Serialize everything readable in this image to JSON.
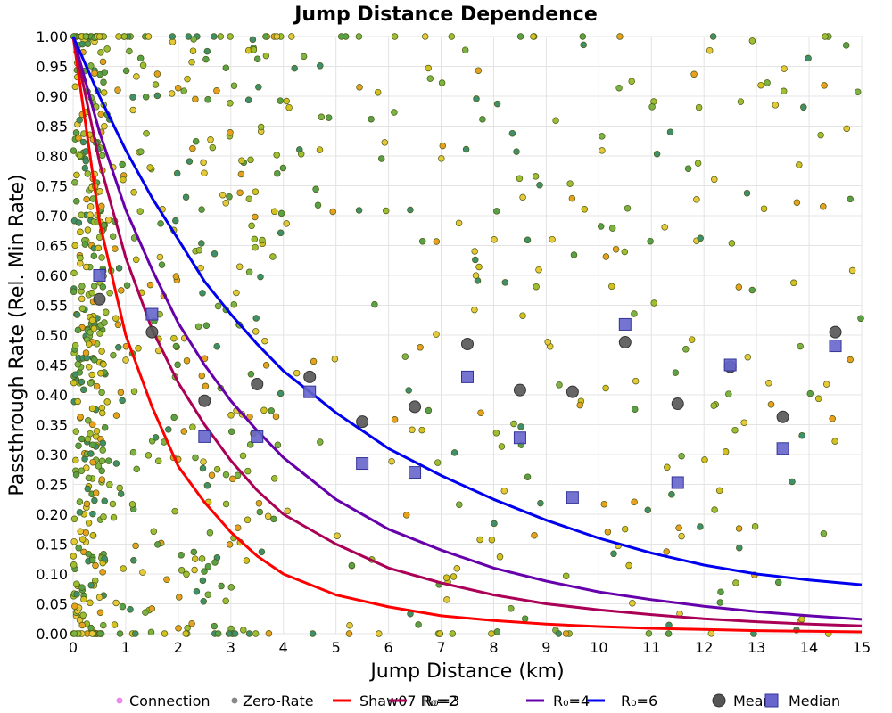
{
  "chart_data": {
    "type": "scatter",
    "title": "Jump Distance Dependence",
    "xlabel": "Jump Distance (km)",
    "ylabel": "Passthrough Rate (Rel. Min Rate)",
    "xlim": [
      0,
      15
    ],
    "ylim": [
      0,
      1
    ],
    "grid": true,
    "x_ticks": [
      "0",
      "1",
      "2",
      "3",
      "4",
      "5",
      "6",
      "7",
      "8",
      "9",
      "10",
      "11",
      "12",
      "13",
      "14",
      "15"
    ],
    "y_ticks": [
      "0.00",
      "0.05",
      "0.10",
      "0.15",
      "0.20",
      "0.25",
      "0.30",
      "0.35",
      "0.40",
      "0.45",
      "0.50",
      "0.55",
      "0.60",
      "0.65",
      "0.70",
      "0.75",
      "0.80",
      "0.85",
      "0.90",
      "0.95",
      "1.00"
    ],
    "legend_position": "bottom",
    "legend": [
      {
        "label": "Connection",
        "marker": "dot",
        "color": "#ee88ee"
      },
      {
        "label": "Zero-Rate",
        "marker": "dot",
        "color": "#888888"
      },
      {
        "label": "Shaw07 R₀=2",
        "marker": "line",
        "color": "#ff0000"
      },
      {
        "label": "R₀=3",
        "marker": "line",
        "color": "#aa0055"
      },
      {
        "label": "R₀=4",
        "marker": "line",
        "color": "#6600aa"
      },
      {
        "label": "R₀=6",
        "marker": "line",
        "color": "#0000ee"
      },
      {
        "label": "Mean",
        "marker": "circle",
        "color": "#555555"
      },
      {
        "label": "Median",
        "marker": "square",
        "color": "#6666cc"
      }
    ],
    "curves": [
      {
        "name": "Shaw07 R₀=2",
        "color": "#ff0000",
        "formula": "1/(1+(x/0.6))^2 approx",
        "points": [
          [
            0,
            1
          ],
          [
            0.5,
            0.69
          ],
          [
            1,
            0.5
          ],
          [
            1.5,
            0.38
          ],
          [
            2,
            0.28
          ],
          [
            2.5,
            0.22
          ],
          [
            3,
            0.17
          ],
          [
            3.5,
            0.13
          ],
          [
            4,
            0.1
          ],
          [
            5,
            0.065
          ],
          [
            6,
            0.045
          ],
          [
            7,
            0.03
          ],
          [
            8,
            0.022
          ],
          [
            9,
            0.016
          ],
          [
            10,
            0.012
          ],
          [
            11,
            0.009
          ],
          [
            12,
            0.007
          ],
          [
            13,
            0.005
          ],
          [
            14,
            0.004
          ],
          [
            15,
            0.003
          ]
        ]
      },
      {
        "name": "R₀=3",
        "color": "#aa0055",
        "points": [
          [
            0,
            1
          ],
          [
            0.5,
            0.79
          ],
          [
            1,
            0.63
          ],
          [
            1.5,
            0.51
          ],
          [
            2,
            0.42
          ],
          [
            2.5,
            0.35
          ],
          [
            3,
            0.29
          ],
          [
            3.5,
            0.24
          ],
          [
            4,
            0.2
          ],
          [
            5,
            0.15
          ],
          [
            6,
            0.11
          ],
          [
            7,
            0.085
          ],
          [
            8,
            0.065
          ],
          [
            9,
            0.05
          ],
          [
            10,
            0.04
          ],
          [
            11,
            0.032
          ],
          [
            12,
            0.025
          ],
          [
            13,
            0.02
          ],
          [
            14,
            0.016
          ],
          [
            15,
            0.013
          ]
        ]
      },
      {
        "name": "R₀=4",
        "color": "#6600aa",
        "points": [
          [
            0,
            1
          ],
          [
            0.5,
            0.84
          ],
          [
            1,
            0.71
          ],
          [
            1.5,
            0.61
          ],
          [
            2,
            0.52
          ],
          [
            2.5,
            0.45
          ],
          [
            3,
            0.39
          ],
          [
            3.5,
            0.34
          ],
          [
            4,
            0.295
          ],
          [
            5,
            0.225
          ],
          [
            6,
            0.175
          ],
          [
            7,
            0.14
          ],
          [
            8,
            0.11
          ],
          [
            9,
            0.088
          ],
          [
            10,
            0.07
          ],
          [
            11,
            0.057
          ],
          [
            12,
            0.046
          ],
          [
            13,
            0.037
          ],
          [
            14,
            0.03
          ],
          [
            15,
            0.024
          ]
        ]
      },
      {
        "name": "R₀=6",
        "color": "#0000ee",
        "points": [
          [
            0,
            1
          ],
          [
            0.5,
            0.9
          ],
          [
            1,
            0.81
          ],
          [
            1.5,
            0.73
          ],
          [
            2,
            0.66
          ],
          [
            2.5,
            0.59
          ],
          [
            3,
            0.535
          ],
          [
            3.5,
            0.485
          ],
          [
            4,
            0.44
          ],
          [
            5,
            0.37
          ],
          [
            6,
            0.31
          ],
          [
            7,
            0.265
          ],
          [
            8,
            0.225
          ],
          [
            9,
            0.19
          ],
          [
            10,
            0.16
          ],
          [
            11,
            0.135
          ],
          [
            12,
            0.115
          ],
          [
            13,
            0.1
          ],
          [
            14,
            0.09
          ],
          [
            15,
            0.082
          ]
        ]
      }
    ],
    "mean": [
      [
        0.5,
        0.56
      ],
      [
        1.5,
        0.505
      ],
      [
        2.5,
        0.39
      ],
      [
        3.5,
        0.418
      ],
      [
        4.5,
        0.43
      ],
      [
        5.5,
        0.355
      ],
      [
        6.5,
        0.38
      ],
      [
        7.5,
        0.485
      ],
      [
        8.5,
        0.408
      ],
      [
        9.5,
        0.405
      ],
      [
        10.5,
        0.488
      ],
      [
        11.5,
        0.385
      ],
      [
        12.5,
        0.447
      ],
      [
        13.5,
        0.363
      ],
      [
        14.5,
        0.505
      ]
    ],
    "median": [
      [
        0.5,
        0.6
      ],
      [
        1.5,
        0.535
      ],
      [
        2.5,
        0.33
      ],
      [
        3.5,
        0.33
      ],
      [
        4.5,
        0.405
      ],
      [
        5.5,
        0.285
      ],
      [
        6.5,
        0.27
      ],
      [
        7.5,
        0.43
      ],
      [
        8.5,
        0.328
      ],
      [
        9.5,
        0.228
      ],
      [
        10.5,
        0.518
      ],
      [
        11.5,
        0.253
      ],
      [
        12.5,
        0.45
      ],
      [
        13.5,
        0.31
      ],
      [
        14.5,
        0.482
      ]
    ],
    "scatter_seed": 7,
    "scatter_count": 900,
    "scatter_colors": [
      "#d4c020",
      "#e6c83a",
      "#9dbd32",
      "#7cb342",
      "#5aa046",
      "#3f8f6a",
      "#e8a020"
    ],
    "scatter_edge": "#556600"
  }
}
